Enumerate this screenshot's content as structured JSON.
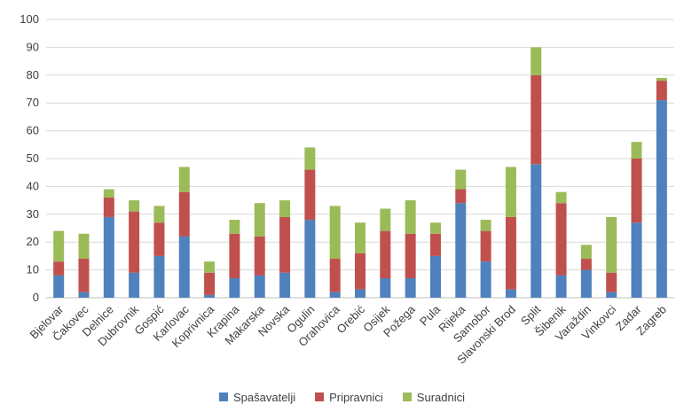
{
  "chart_data": {
    "type": "bar",
    "stacked": true,
    "categories": [
      "Bjelovar",
      "Čakovec",
      "Delnice",
      "Dubrovnik",
      "Gospić",
      "Karlovac",
      "Koprivnica",
      "Krapina",
      "Makarska",
      "Novska",
      "Ogulin",
      "Orahovica",
      "Orebić",
      "Osijek",
      "Požega",
      "Pula",
      "Rijeka",
      "Samobor",
      "Slavonski Brod",
      "Split",
      "Šibenik",
      "Varaždin",
      "Vinkovci",
      "Zadar",
      "Zagreb"
    ],
    "series": [
      {
        "name": "Spašavatelji",
        "color": "#4f81bd",
        "values": [
          8,
          2,
          29,
          9,
          15,
          22,
          1,
          7,
          8,
          9,
          28,
          2,
          3,
          7,
          7,
          15,
          34,
          13,
          3,
          48,
          8,
          10,
          2,
          27,
          71
        ]
      },
      {
        "name": "Pripravnici",
        "color": "#c0504d",
        "values": [
          5,
          12,
          7,
          22,
          12,
          16,
          8,
          16,
          14,
          20,
          18,
          12,
          13,
          17,
          16,
          8,
          5,
          11,
          26,
          32,
          26,
          4,
          7,
          23,
          7
        ]
      },
      {
        "name": "Suradnici",
        "color": "#9bbb59",
        "values": [
          11,
          9,
          3,
          4,
          6,
          9,
          4,
          5,
          12,
          6,
          8,
          19,
          11,
          8,
          12,
          4,
          7,
          4,
          18,
          10,
          4,
          5,
          20,
          6,
          1
        ]
      }
    ],
    "ylim": [
      0,
      100
    ],
    "yticks": [
      "0",
      "10",
      "20",
      "30",
      "40",
      "50",
      "60",
      "70",
      "80",
      "90",
      "100"
    ],
    "grid": true,
    "legend_position": "bottom",
    "title": "",
    "xlabel": "",
    "ylabel": ""
  }
}
